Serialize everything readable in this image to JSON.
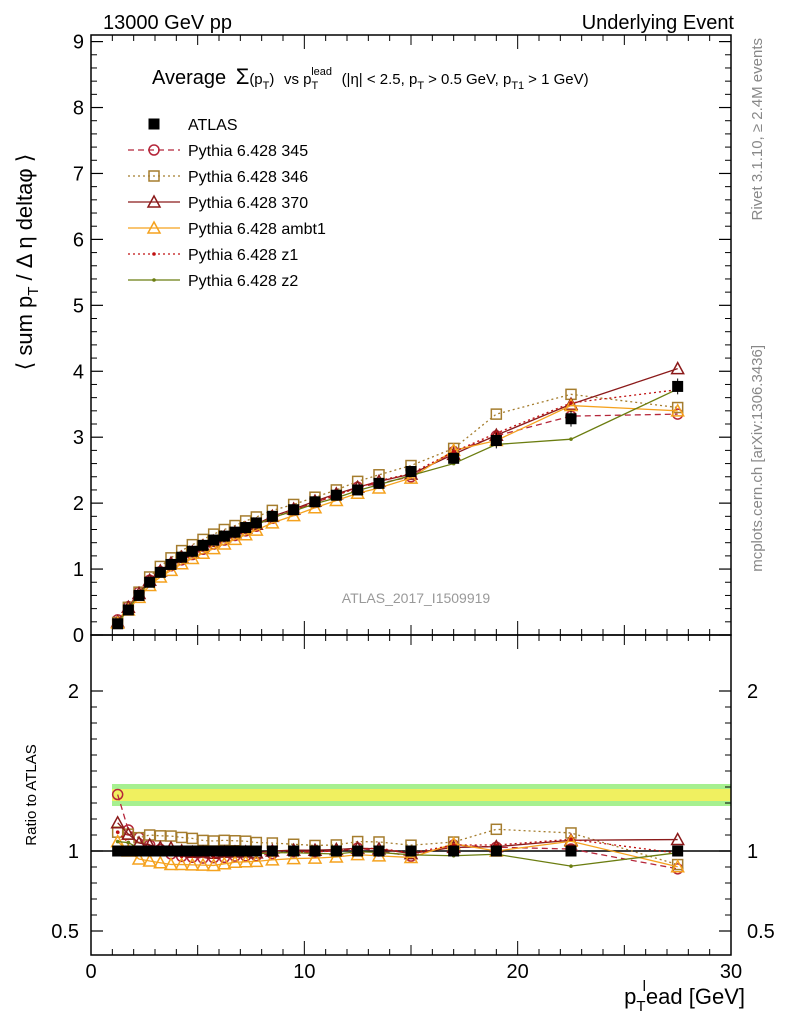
{
  "header": {
    "left": "13000 GeV pp",
    "right": "Underlying Event"
  },
  "side": {
    "rivet": "Rivet 3.1.10, ≥ 2.4M events",
    "mcplots": "mcplots.cern.ch [arXiv:1306.3436]"
  },
  "watermark": "ATLAS_2017_I1509919",
  "title": {
    "average": "Average",
    "sigma": "Σ",
    "pt_open": "(p",
    "pt_sub": "T",
    "pt_close": ")",
    "vs": "vs p",
    "vs_sub": "T",
    "vs_sup": "lead",
    "cuts1": "(|η| < 2.5, p",
    "cuts_sub1": "T",
    "cuts2": "> 0.5 GeV, p",
    "cuts_sub2": "T1",
    "cuts3": "> 1 GeV)"
  },
  "ylabel_main": {
    "p1": "⟨ sum p",
    "sub": "T",
    "p2": " / Δ η deltaφ ⟩"
  },
  "ylabel_ratio": "Ratio to ATLAS",
  "xlabel": {
    "p": "p",
    "sub": "T",
    "sup": "l",
    "rest": "ead [GeV]"
  },
  "colors": {
    "atlas": "#000000",
    "p345": "#b5263a",
    "p346": "#a57d2e",
    "p370": "#8b1a1a",
    "ambt1": "#f5a21e",
    "z1": "#c01010",
    "z2": "#6b7d10",
    "band_inner": "#f0f060",
    "band_outer": "#a6f090"
  },
  "chart_data": {
    "type": "line",
    "title": "Average Σ(pT) vs pT lead (|η| < 2.5, pT > 0.5 GeV, pT1 > 1 GeV)",
    "xlabel": "pT lead [GeV]",
    "ylabel": "⟨ sum pT / Δ η deltaφ ⟩",
    "xlim": [
      0,
      30
    ],
    "ylim": [
      0,
      9.1
    ],
    "ratio_ylabel": "Ratio to ATLAS",
    "ratio_ylim": [
      0.35,
      2.35
    ],
    "ratio_yticks": [
      "0.5",
      "1",
      "2"
    ],
    "x_ticks": [
      "0",
      "10",
      "20",
      "30"
    ],
    "y_ticks": [
      "0",
      "1",
      "2",
      "3",
      "4",
      "5",
      "6",
      "7",
      "8",
      "9"
    ],
    "x": [
      1.25,
      1.75,
      2.25,
      2.75,
      3.25,
      3.75,
      4.25,
      4.75,
      5.25,
      5.75,
      6.25,
      6.75,
      7.25,
      7.75,
      8.5,
      9.5,
      10.5,
      11.5,
      12.5,
      13.5,
      15.0,
      17.0,
      19.0,
      22.5,
      27.5
    ],
    "legend": {
      "placement": "top-left"
    },
    "series": [
      {
        "name": "ATLAS",
        "key": "atlas",
        "marker": "square-filled",
        "line": "none",
        "values": [
          0.17,
          0.38,
          0.6,
          0.8,
          0.95,
          1.07,
          1.18,
          1.27,
          1.36,
          1.44,
          1.5,
          1.56,
          1.63,
          1.7,
          1.8,
          1.9,
          2.02,
          2.12,
          2.2,
          2.3,
          2.48,
          2.68,
          2.95,
          3.28,
          3.77
        ]
      },
      {
        "name": "Pythia 6.428 345",
        "key": "p345",
        "marker": "circle-open",
        "line": "dashed",
        "values": [
          0.23,
          0.43,
          0.65,
          0.83,
          0.96,
          1.05,
          1.14,
          1.22,
          1.3,
          1.38,
          1.44,
          1.51,
          1.58,
          1.65,
          1.77,
          1.89,
          2.01,
          2.12,
          2.24,
          2.3,
          2.4,
          2.78,
          3.02,
          3.32,
          3.35
        ]
      },
      {
        "name": "Pythia 6.428 346",
        "key": "p346",
        "marker": "square-open",
        "line": "dotted",
        "values": [
          0.19,
          0.42,
          0.65,
          0.88,
          1.04,
          1.17,
          1.28,
          1.37,
          1.45,
          1.53,
          1.6,
          1.66,
          1.73,
          1.79,
          1.89,
          1.98,
          2.09,
          2.2,
          2.33,
          2.43,
          2.57,
          2.83,
          3.35,
          3.65,
          3.45
        ]
      },
      {
        "name": "Pythia 6.428 370",
        "key": "p370",
        "marker": "triangle-open",
        "line": "solid",
        "values": [
          0.2,
          0.42,
          0.63,
          0.83,
          0.97,
          1.09,
          1.18,
          1.26,
          1.35,
          1.42,
          1.49,
          1.55,
          1.62,
          1.68,
          1.8,
          1.91,
          2.03,
          2.14,
          2.24,
          2.33,
          2.44,
          2.74,
          3.03,
          3.5,
          4.04
        ]
      },
      {
        "name": "Pythia 6.428 ambt1",
        "key": "ambt1",
        "marker": "triangle-open",
        "line": "solid",
        "values": [
          0.18,
          0.38,
          0.57,
          0.75,
          0.88,
          0.98,
          1.08,
          1.16,
          1.24,
          1.31,
          1.38,
          1.45,
          1.52,
          1.59,
          1.7,
          1.81,
          1.93,
          2.04,
          2.15,
          2.23,
          2.38,
          2.8,
          2.95,
          3.48,
          3.4
        ]
      },
      {
        "name": "Pythia 6.428 z1",
        "key": "z1",
        "marker": "dot",
        "line": "dotted",
        "values": [
          0.19,
          0.4,
          0.61,
          0.8,
          0.94,
          1.05,
          1.14,
          1.23,
          1.32,
          1.39,
          1.46,
          1.53,
          1.6,
          1.67,
          1.78,
          1.89,
          2.01,
          2.12,
          2.23,
          2.34,
          2.45,
          2.78,
          3.06,
          3.52,
          3.72
        ]
      },
      {
        "name": "Pythia 6.428 z2",
        "key": "z2",
        "marker": "dot",
        "line": "solid",
        "values": [
          0.18,
          0.4,
          0.61,
          0.81,
          0.95,
          1.06,
          1.16,
          1.25,
          1.33,
          1.41,
          1.47,
          1.54,
          1.6,
          1.67,
          1.78,
          1.88,
          1.99,
          2.08,
          2.19,
          2.28,
          2.42,
          2.6,
          2.89,
          2.97,
          3.73
        ]
      }
    ]
  }
}
